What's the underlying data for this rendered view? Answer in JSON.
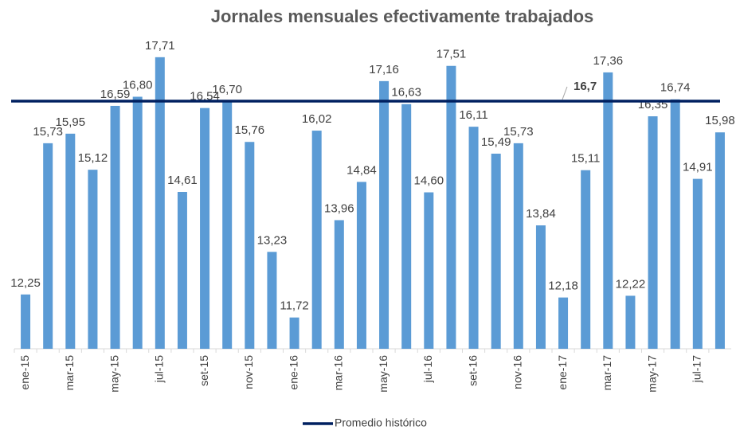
{
  "chart_data": {
    "type": "bar",
    "title": "Jornales mensuales efectivamente trabajados",
    "categories": [
      "ene-15",
      null,
      "mar-15",
      null,
      "may-15",
      null,
      "jul-15",
      null,
      "set-15",
      null,
      "nov-15",
      null,
      "ene-16",
      null,
      "mar-16",
      null,
      "may-16",
      null,
      "jul-16",
      null,
      "set-16",
      null,
      "nov-16",
      null,
      "ene-17",
      null,
      "mar-17",
      null,
      "may-17",
      null,
      "jul-17",
      null
    ],
    "values": [
      12.25,
      15.73,
      15.95,
      15.12,
      16.59,
      16.8,
      17.71,
      14.61,
      16.54,
      16.7,
      15.76,
      13.23,
      11.72,
      16.02,
      13.96,
      14.84,
      17.16,
      16.63,
      14.6,
      17.51,
      16.11,
      15.49,
      15.73,
      13.84,
      12.18,
      15.11,
      17.36,
      12.22,
      16.35,
      16.74,
      14.91,
      15.98
    ],
    "value_labels": [
      "12,25",
      "15,73",
      "15,95",
      "15,12",
      "16,59",
      "16,80",
      "17,71",
      "14,61",
      "16,54",
      "16,70",
      "15,76",
      "13,23",
      "11,72",
      "16,02",
      "13,96",
      "14,84",
      "17,16",
      "16,63",
      "14,60",
      "17,51",
      "16,11",
      "15,49",
      "15,73",
      "13,84",
      "12,18",
      "15,11",
      "17,36",
      "12,22",
      "16,35",
      "16,74",
      "14,91",
      "15,98"
    ],
    "color": "#5b9bd5",
    "ylim": [
      11,
      18
    ],
    "reference_line": {
      "name": "Promedio histórico",
      "value": 16.7,
      "value_label": "16,7",
      "color": "#002060"
    }
  }
}
